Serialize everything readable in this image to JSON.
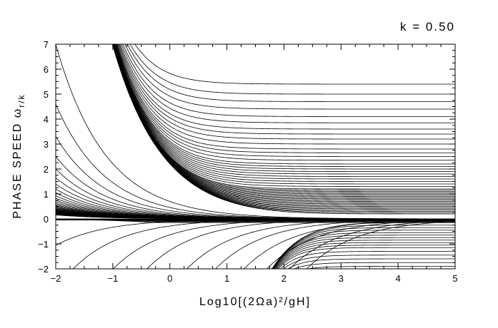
{
  "chart_data": {
    "type": "line",
    "annotation": "k = 0.50",
    "xlabel": "Log10[(2Ωa)²/gH]",
    "ylabel": "PHASE SPEED ω",
    "ylabel_sub": "r/k",
    "xlim": [
      -2,
      5
    ],
    "ylim": [
      -2,
      7
    ],
    "x_ticks": [
      -2,
      -1,
      0,
      1,
      2,
      3,
      4,
      5
    ],
    "y_ticks": [
      -2,
      -1,
      0,
      1,
      2,
      3,
      4,
      5,
      6,
      7
    ],
    "grid": false,
    "legend": "none",
    "line_color": "#000000",
    "families": [
      {
        "name_hint": "westward Rossby modes (positive, left region)",
        "form": "y = A * 10^(-x/2)",
        "A_values": [
          0.7,
          0.46,
          0.33,
          0.25,
          0.2,
          0.165,
          0.14,
          0.12,
          0.105,
          0.093,
          0.083,
          0.075,
          0.068,
          0.062,
          0.057,
          0.053,
          0.049,
          0.046,
          0.043,
          0.04,
          0.038,
          0.036,
          0.034,
          0.032,
          0.03,
          0.029,
          0.0275,
          0.026,
          0.025,
          0.024,
          0.023,
          0.022,
          0.021,
          0.02,
          0.0192,
          0.0185,
          0.0178,
          0.0171,
          0.0165,
          0.0159
        ]
      },
      {
        "name_hint": "eastward gravity modes (positive, right region)",
        "form": "y = sqrt(E^2 + B^2 * 10^(-x))",
        "envelope_B": 2.2,
        "E_values": [
          0.2,
          0.25,
          0.3,
          0.35,
          0.4,
          0.45,
          0.5,
          0.55,
          0.6,
          0.65,
          0.7,
          0.75,
          0.8,
          0.85,
          0.9,
          0.95,
          1.0,
          1.05,
          1.1,
          1.15,
          1.2,
          1.3,
          1.4,
          1.5,
          1.6,
          1.7,
          1.8,
          1.9,
          2.0,
          2.1,
          2.2,
          2.35,
          2.5,
          2.65,
          2.8,
          3.0,
          3.2,
          3.4,
          3.6,
          3.85,
          4.1,
          4.4,
          4.7,
          5.0,
          5.4
        ]
      },
      {
        "name_hint": "modes near zero (negative, left region)",
        "form": "y = -A * 10^(x/2) (clipped)",
        "A_values": [
          0.02,
          0.03,
          0.045,
          0.065,
          0.09,
          0.12,
          0.16,
          0.21
        ]
      },
      {
        "name_hint": "westward gravity modes (negative, right region)",
        "form": "y = -sqrt(E^2 + B^2 * 10^(-x))",
        "envelope_B": 0.45,
        "E_values": [
          0.15,
          0.25,
          0.35,
          0.45,
          0.55,
          0.65,
          0.75,
          0.85,
          0.95,
          1.05,
          1.15,
          1.3,
          1.45,
          1.6,
          1.75,
          1.9
        ]
      },
      {
        "name_hint": "rising negative modes (middle)",
        "form": "y = -D * 10^(-(x - x0)/2)",
        "curves": [
          {
            "x0": -2.3,
            "D": 1.5
          },
          {
            "x0": -1.5,
            "D": 1.6
          },
          {
            "x0": -0.9,
            "D": 1.8
          },
          {
            "x0": -0.4,
            "D": 2.0
          },
          {
            "x0": 0.3,
            "D": 2.0
          },
          {
            "x0": 0.8,
            "D": 2.0
          },
          {
            "x0": 1.3,
            "D": 2.0
          },
          {
            "x0": 1.7,
            "D": 2.0
          },
          {
            "x0": 2.1,
            "D": 2.0
          },
          {
            "x0": 2.4,
            "D": 2.0
          }
        ]
      }
    ]
  }
}
